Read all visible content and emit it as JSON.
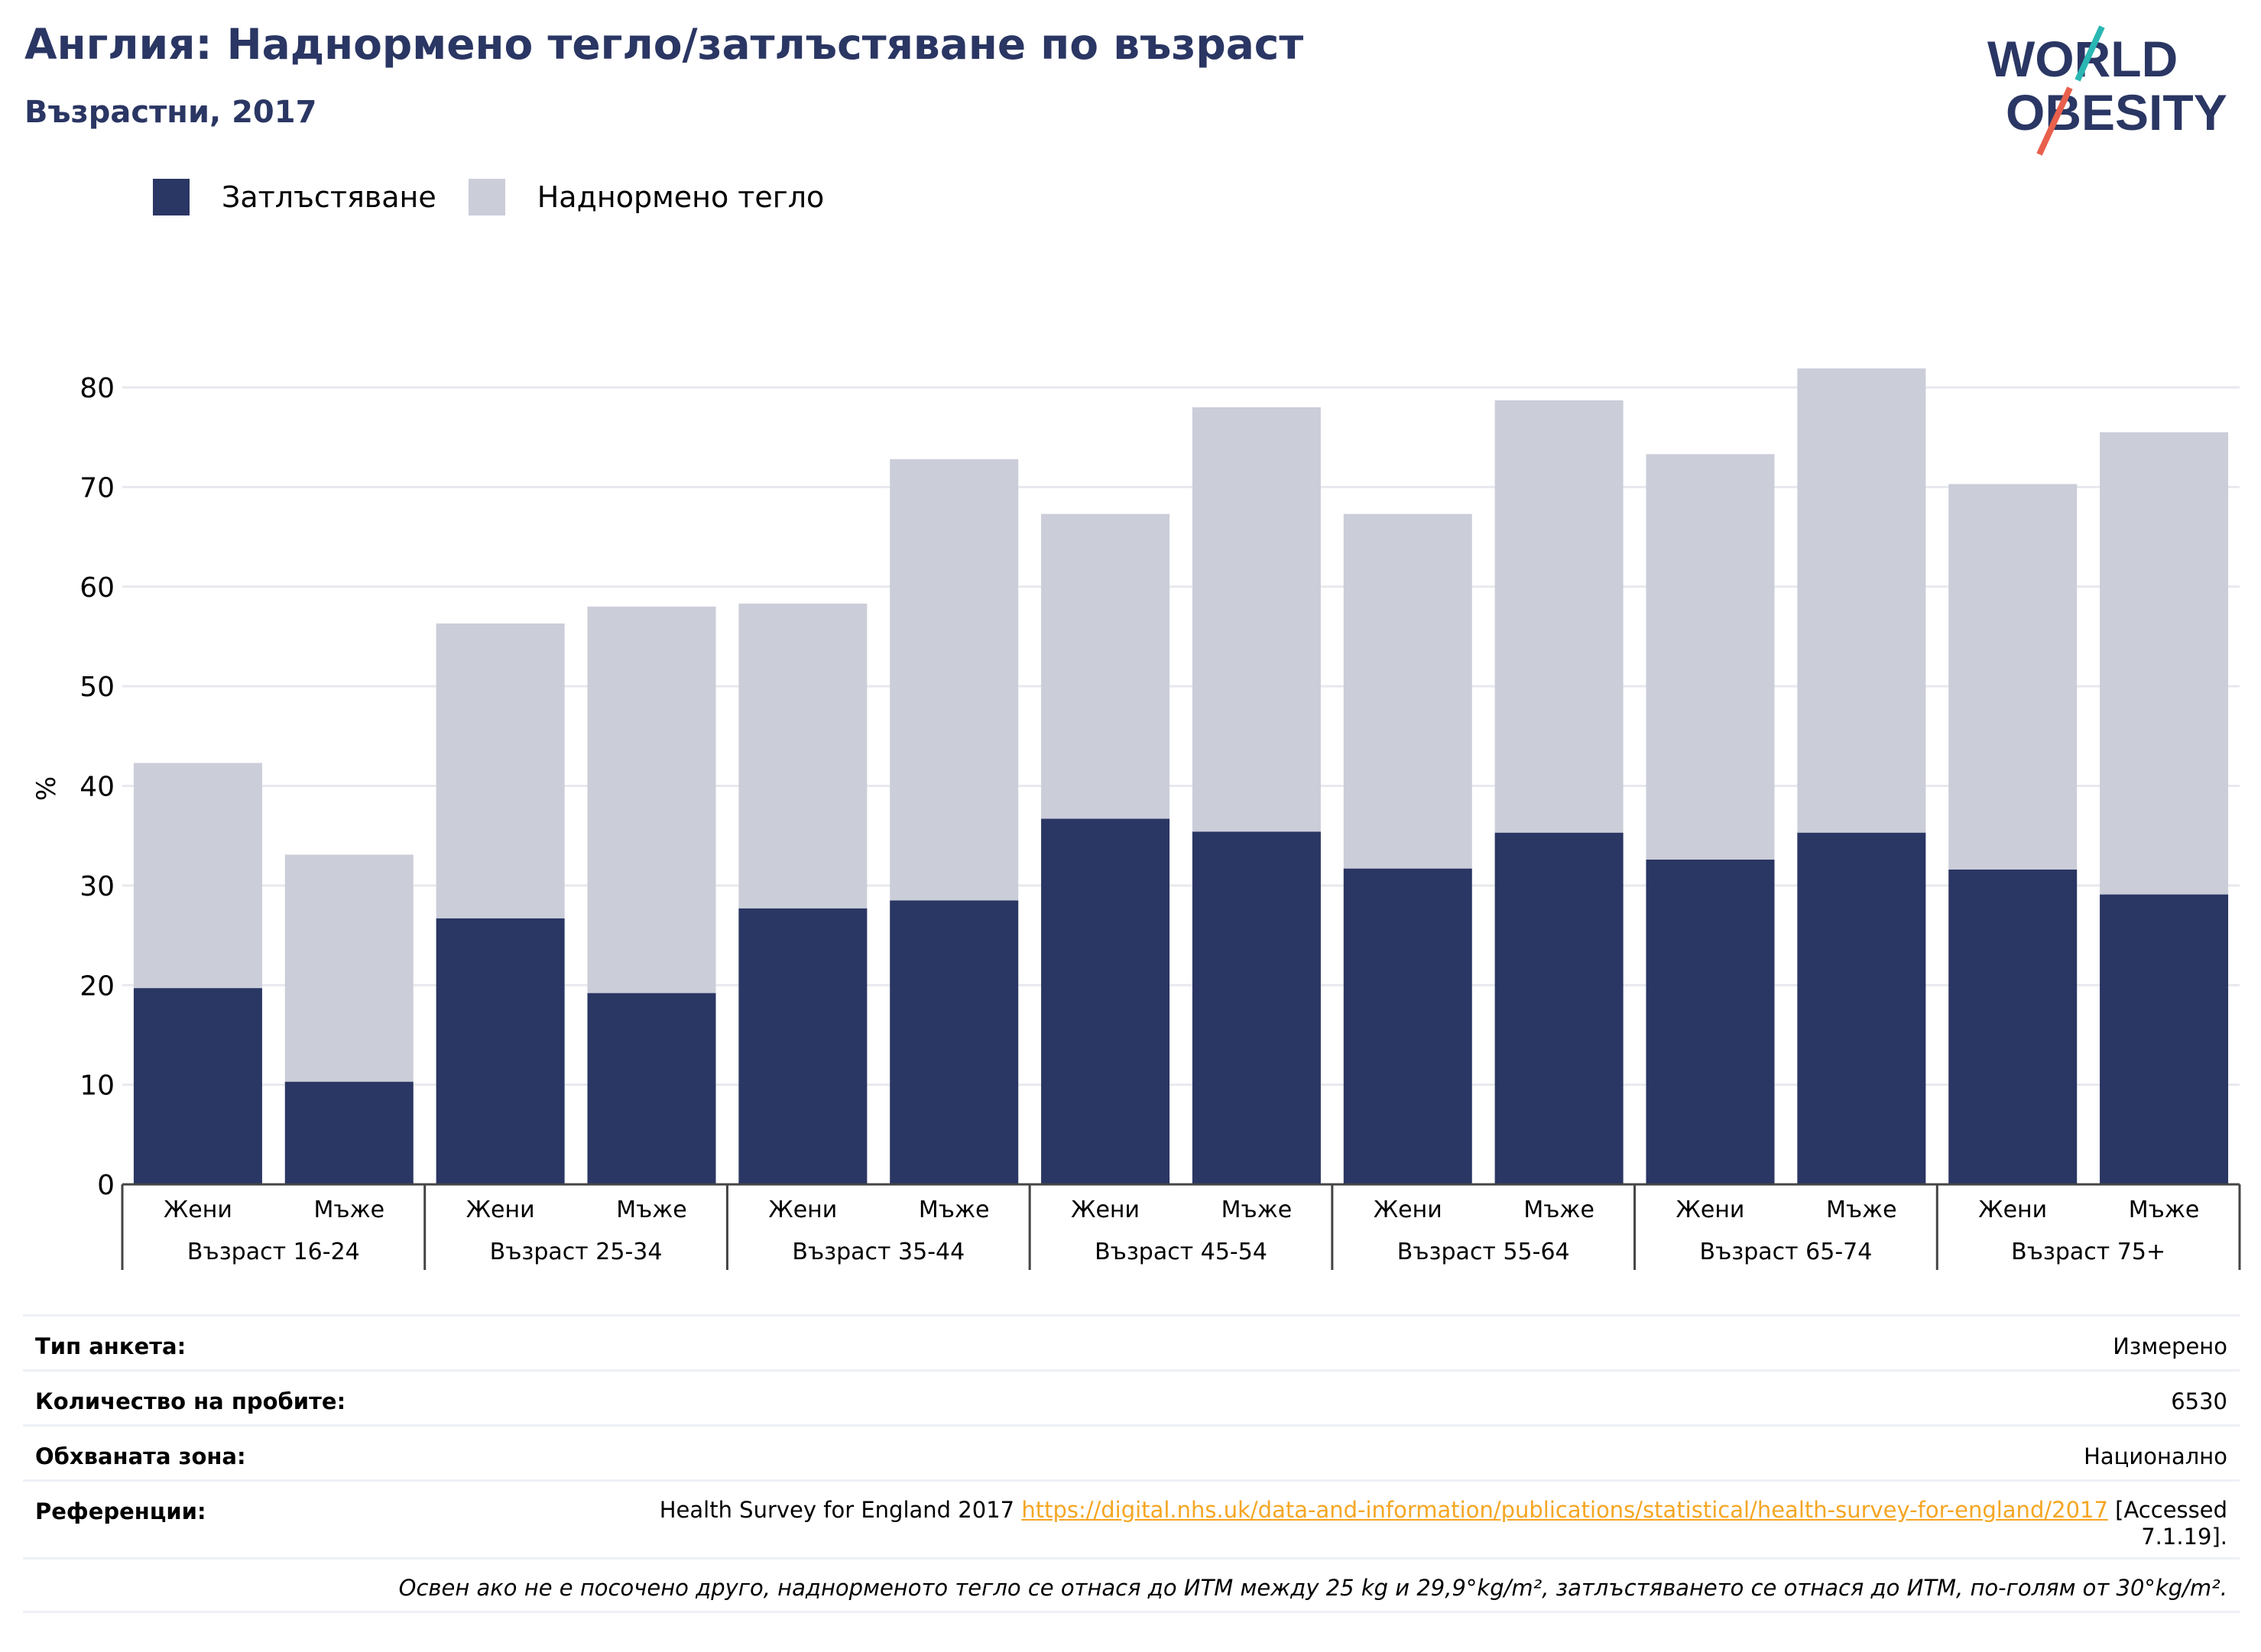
{
  "header": {
    "title": "Англия: Наднормено тегло/затлъстяване по възраст",
    "subtitle": "Възрастни, 2017"
  },
  "logo": {
    "line1": "WORLD",
    "line2": "OBESITY",
    "colors": {
      "text": "#2a3663",
      "accent_teal": "#2ab7b4",
      "accent_red": "#e8604c"
    }
  },
  "legend": [
    {
      "label": "Затлъстяване",
      "color": "#2a3663"
    },
    {
      "label": "Наднормено тегло",
      "color": "#cbcdd9"
    }
  ],
  "chart_data": {
    "type": "bar",
    "stacked": true,
    "ylabel": "%",
    "ylim": [
      0,
      85
    ],
    "yticks": [
      0,
      10,
      20,
      30,
      40,
      50,
      60,
      70,
      80
    ],
    "grid": true,
    "legend_position": "top-left",
    "groups": [
      {
        "label": "Възраст 16-24",
        "bars": [
          {
            "label": "Жени",
            "obesity": 19.7,
            "total": 42.3
          },
          {
            "label": "Мъже",
            "obesity": 10.3,
            "total": 33.1
          }
        ]
      },
      {
        "label": "Възраст 25-34",
        "bars": [
          {
            "label": "Жени",
            "obesity": 26.7,
            "total": 56.3
          },
          {
            "label": "Мъже",
            "obesity": 19.2,
            "total": 58.0
          }
        ]
      },
      {
        "label": "Възраст 35-44",
        "bars": [
          {
            "label": "Жени",
            "obesity": 27.7,
            "total": 58.3
          },
          {
            "label": "Мъже",
            "obesity": 28.5,
            "total": 72.8
          }
        ]
      },
      {
        "label": "Възраст 45-54",
        "bars": [
          {
            "label": "Жени",
            "obesity": 36.7,
            "total": 67.3
          },
          {
            "label": "Мъже",
            "obesity": 35.4,
            "total": 78.0
          }
        ]
      },
      {
        "label": "Възраст 55-64",
        "bars": [
          {
            "label": "Жени",
            "obesity": 31.7,
            "total": 67.3
          },
          {
            "label": "Мъже",
            "obesity": 35.3,
            "total": 78.7
          }
        ]
      },
      {
        "label": "Възраст 65-74",
        "bars": [
          {
            "label": "Жени",
            "obesity": 32.6,
            "total": 73.3
          },
          {
            "label": "Мъже",
            "obesity": 35.3,
            "total": 81.9
          }
        ]
      },
      {
        "label": "Възраст 75+",
        "bars": [
          {
            "label": "Жени",
            "obesity": 31.6,
            "total": 70.3
          },
          {
            "label": "Мъже",
            "obesity": 29.1,
            "total": 75.5
          }
        ]
      }
    ]
  },
  "info": {
    "survey_type_label": "Тип анкета:",
    "survey_type_value": "Измерено",
    "sample_size_label": "Количество на пробите:",
    "sample_size_value": "6530",
    "area_label": "Обхваната зона:",
    "area_value": "Национално",
    "references_label": "Референции:",
    "references_text": "Health Survey for England 2017",
    "references_link": "https://digital.nhs.uk/data-and-information/publications/statistical/health-survey-for-england/2017",
    "references_suffix_1": "[Accessed",
    "references_suffix_2": "7.1.19].",
    "note": "Освен ако не е посочено друго, наднорменото тегло се отнася до ИТМ между 25 kg и 29,9°kg/m², затлъстяването се отнася до ИТМ, по-голям от 30°kg/m²."
  }
}
